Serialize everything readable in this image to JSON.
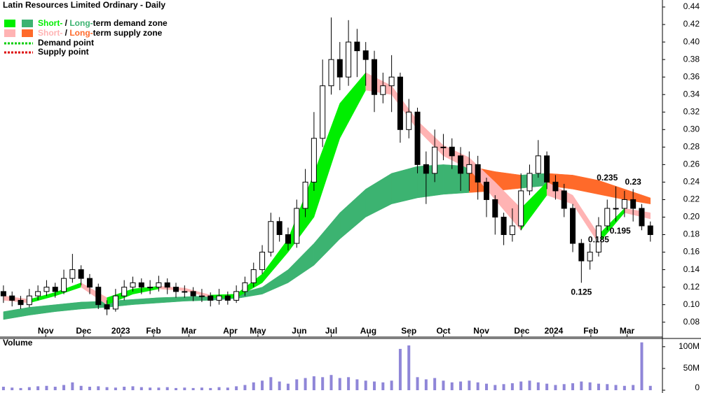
{
  "chart_data": {
    "type": "candlestick",
    "title": "Latin Resources Limited Ordinary - Daily",
    "legend": {
      "demand_zone": {
        "short": "Short-",
        "sep": " / ",
        "long": "Long-",
        "rest": "term demand zone"
      },
      "supply_zone": {
        "short": "Short-",
        "sep": " / ",
        "long": "Long-",
        "rest": "term supply zone"
      },
      "demand_point": "Demand point",
      "supply_point": "Supply point"
    },
    "colors": {
      "short_demand": "#00ee00",
      "long_demand": "#3cb371",
      "short_supply": "#ffb3b3",
      "long_supply": "#ff6a2a",
      "demand_point": "#00cc00",
      "supply_point": "#dd0000",
      "volume": "#8f86d8",
      "volume_title": "#660099"
    },
    "xlim": [
      -0.4,
      76.4
    ],
    "xticks": [
      {
        "value": 4.9,
        "label": "Nov"
      },
      {
        "value": 9.3,
        "label": "Dec"
      },
      {
        "value": 13.6,
        "label": "2023"
      },
      {
        "value": 17.4,
        "label": "Feb"
      },
      {
        "value": 21.5,
        "label": "Mar"
      },
      {
        "value": 26.3,
        "label": "Apr"
      },
      {
        "value": 29.5,
        "label": "May"
      },
      {
        "value": 34.3,
        "label": "Jun"
      },
      {
        "value": 38,
        "label": "Jul"
      },
      {
        "value": 42.3,
        "label": "Aug"
      },
      {
        "value": 47,
        "label": "Sep"
      },
      {
        "value": 51,
        "label": "Oct"
      },
      {
        "value": 55.4,
        "label": "Nov"
      },
      {
        "value": 60.1,
        "label": "Dec"
      },
      {
        "value": 63.8,
        "label": "2024"
      },
      {
        "value": 68.1,
        "label": "Feb"
      },
      {
        "value": 72.3,
        "label": "Mar"
      }
    ],
    "ylim": [
      0.063,
      0.448
    ],
    "yticks": [
      0.08,
      {
        "value": 0.1,
        "label": "0.10"
      },
      0.12,
      0.14,
      0.16,
      0.18,
      {
        "value": 0.2,
        "label": "0.20"
      },
      0.22,
      0.24,
      0.26,
      0.28,
      {
        "value": 0.3,
        "label": "0.30"
      },
      0.32,
      0.34,
      0.36,
      0.38,
      {
        "value": 0.4,
        "label": "0.40"
      },
      0.42,
      0.44
    ],
    "open": [
      0.115,
      0.11,
      0.105,
      0.1,
      0.11,
      0.115,
      0.12,
      0.115,
      0.13,
      0.14,
      0.13,
      0.12,
      0.1,
      0.095,
      0.11,
      0.12,
      0.125,
      0.12,
      0.12,
      0.125,
      0.12,
      0.115,
      0.115,
      0.11,
      0.11,
      0.105,
      0.11,
      0.105,
      0.115,
      0.125,
      0.14,
      0.16,
      0.195,
      0.18,
      0.17,
      0.21,
      0.24,
      0.29,
      0.35,
      0.38,
      0.36,
      0.4,
      0.39,
      0.38,
      0.34,
      0.35,
      0.36,
      0.3,
      0.32,
      0.26,
      0.25,
      0.28,
      0.28,
      0.27,
      0.25,
      0.26,
      0.24,
      0.22,
      0.2,
      0.18,
      0.19,
      0.23,
      0.25,
      0.27,
      0.24,
      0.23,
      0.21,
      0.17,
      0.15,
      0.16,
      0.19,
      0.21,
      0.21,
      0.22,
      0.21,
      0.19
    ],
    "high": [
      0.122,
      0.115,
      0.11,
      0.118,
      0.122,
      0.128,
      0.125,
      0.14,
      0.158,
      0.145,
      0.135,
      0.124,
      0.105,
      0.118,
      0.128,
      0.132,
      0.13,
      0.128,
      0.133,
      0.13,
      0.125,
      0.122,
      0.12,
      0.118,
      0.114,
      0.118,
      0.115,
      0.122,
      0.132,
      0.148,
      0.168,
      0.205,
      0.2,
      0.188,
      0.22,
      0.255,
      0.32,
      0.38,
      0.428,
      0.4,
      0.425,
      0.415,
      0.4,
      0.39,
      0.365,
      0.385,
      0.365,
      0.335,
      0.325,
      0.275,
      0.3,
      0.295,
      0.29,
      0.28,
      0.275,
      0.27,
      0.245,
      0.225,
      0.205,
      0.21,
      0.25,
      0.26,
      0.288,
      0.275,
      0.248,
      0.238,
      0.215,
      0.175,
      0.17,
      0.2,
      0.22,
      0.235,
      0.23,
      0.232,
      0.215,
      0.195
    ],
    "low": [
      0.102,
      0.098,
      0.095,
      0.097,
      0.105,
      0.11,
      0.108,
      0.112,
      0.125,
      0.122,
      0.112,
      0.095,
      0.088,
      0.092,
      0.105,
      0.115,
      0.112,
      0.112,
      0.115,
      0.112,
      0.108,
      0.108,
      0.104,
      0.103,
      0.098,
      0.1,
      0.1,
      0.102,
      0.11,
      0.12,
      0.135,
      0.155,
      0.172,
      0.162,
      0.165,
      0.2,
      0.23,
      0.28,
      0.34,
      0.345,
      0.35,
      0.36,
      0.35,
      0.32,
      0.33,
      0.32,
      0.285,
      0.29,
      0.25,
      0.215,
      0.24,
      0.265,
      0.255,
      0.23,
      0.23,
      0.22,
      0.2,
      0.18,
      0.168,
      0.172,
      0.185,
      0.225,
      0.245,
      0.232,
      0.22,
      0.2,
      0.16,
      0.125,
      0.14,
      0.155,
      0.185,
      0.195,
      0.2,
      0.195,
      0.185,
      0.172
    ],
    "close": [
      0.11,
      0.105,
      0.1,
      0.11,
      0.115,
      0.12,
      0.115,
      0.13,
      0.14,
      0.13,
      0.12,
      0.1,
      0.095,
      0.11,
      0.12,
      0.125,
      0.12,
      0.12,
      0.125,
      0.12,
      0.115,
      0.115,
      0.11,
      0.11,
      0.105,
      0.11,
      0.105,
      0.115,
      0.125,
      0.14,
      0.16,
      0.195,
      0.18,
      0.17,
      0.21,
      0.24,
      0.29,
      0.35,
      0.38,
      0.36,
      0.4,
      0.39,
      0.38,
      0.34,
      0.35,
      0.36,
      0.3,
      0.32,
      0.26,
      0.25,
      0.28,
      0.28,
      0.27,
      0.25,
      0.26,
      0.24,
      0.22,
      0.2,
      0.18,
      0.19,
      0.23,
      0.25,
      0.27,
      0.24,
      0.23,
      0.21,
      0.17,
      0.15,
      0.16,
      0.19,
      0.21,
      0.21,
      0.22,
      0.21,
      0.19,
      0.18
    ],
    "zone_x": [
      0,
      3,
      6,
      9,
      12,
      15,
      18,
      21,
      24,
      27,
      30,
      33,
      36,
      39,
      42,
      45,
      48,
      51,
      54,
      57,
      60,
      63,
      66,
      69,
      72,
      75
    ],
    "short_lower": [
      0.105,
      0.102,
      0.11,
      0.12,
      0.1,
      0.112,
      0.118,
      0.116,
      0.108,
      0.108,
      0.125,
      0.16,
      0.2,
      0.29,
      0.345,
      0.34,
      0.3,
      0.27,
      0.255,
      0.22,
      0.185,
      0.225,
      0.215,
      0.17,
      0.205,
      0.198
    ],
    "short_upper": [
      0.11,
      0.106,
      0.114,
      0.125,
      0.108,
      0.118,
      0.121,
      0.119,
      0.111,
      0.112,
      0.135,
      0.175,
      0.25,
      0.33,
      0.365,
      0.35,
      0.31,
      0.282,
      0.268,
      0.24,
      0.21,
      0.24,
      0.225,
      0.18,
      0.21,
      0.205
    ],
    "long_lower": [
      0.083,
      0.088,
      0.092,
      0.095,
      0.097,
      0.1,
      0.102,
      0.104,
      0.105,
      0.107,
      0.112,
      0.125,
      0.145,
      0.175,
      0.2,
      0.215,
      0.222,
      0.226,
      0.228,
      0.23,
      0.233,
      0.236,
      0.232,
      0.226,
      0.22,
      0.215
    ],
    "long_upper": [
      0.092,
      0.097,
      0.1,
      0.103,
      0.104,
      0.106,
      0.108,
      0.109,
      0.11,
      0.112,
      0.12,
      0.14,
      0.17,
      0.205,
      0.232,
      0.25,
      0.258,
      0.26,
      0.258,
      0.252,
      0.248,
      0.25,
      0.248,
      0.242,
      0.232,
      0.222
    ],
    "annotations": [
      {
        "x": 67,
        "value": 0.125
      },
      {
        "x": 69,
        "value": 0.185
      },
      {
        "x": 71.5,
        "value": 0.195
      },
      {
        "x": 70,
        "value": 0.235
      },
      {
        "x": 73,
        "value": 0.23
      }
    ],
    "volume_title": "Volume",
    "volume": [
      8,
      6,
      5,
      7,
      9,
      10,
      8,
      12,
      18,
      10,
      8,
      9,
      7,
      6,
      8,
      9,
      7,
      6,
      6,
      7,
      5,
      6,
      5,
      6,
      5,
      7,
      6,
      9,
      12,
      18,
      22,
      30,
      20,
      15,
      25,
      28,
      32,
      30,
      35,
      28,
      30,
      25,
      22,
      20,
      18,
      22,
      95,
      103,
      30,
      25,
      28,
      22,
      18,
      20,
      22,
      18,
      15,
      12,
      14,
      16,
      20,
      22,
      18,
      15,
      12,
      14,
      16,
      20,
      18,
      15,
      14,
      12,
      10,
      12,
      110,
      10
    ],
    "volume_ylim": [
      0,
      119
    ],
    "volume_yticks": [
      0,
      {
        "value": 50,
        "label": "50M"
      },
      {
        "value": 100,
        "label": "100M"
      }
    ]
  }
}
